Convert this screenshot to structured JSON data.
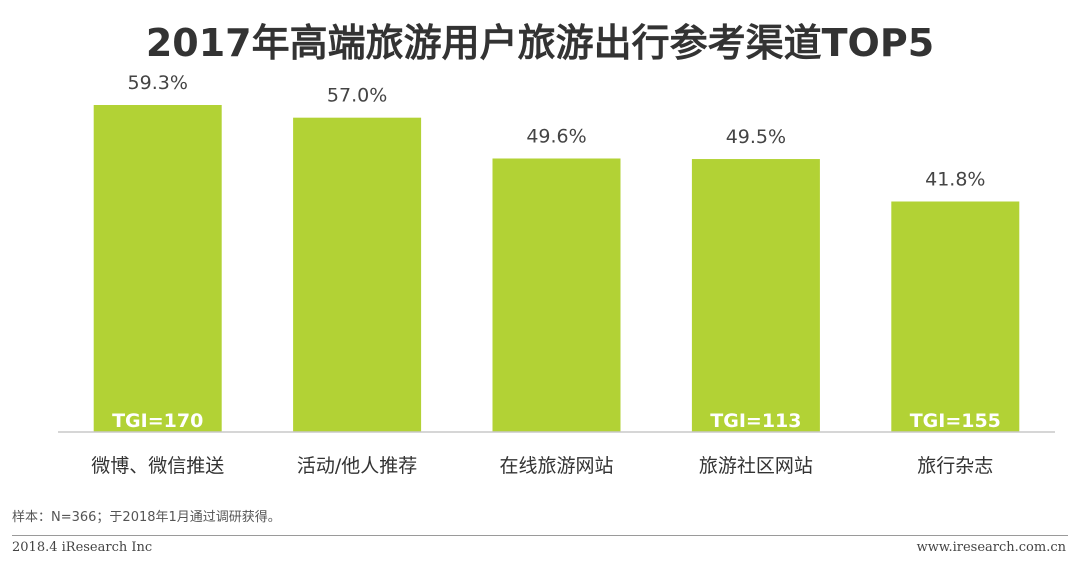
{
  "chart_data": {
    "type": "bar",
    "title": "2017年高端旅游用户旅游出行参考渠道TOP5",
    "categories": [
      "微博、微信推送",
      "活动/他人推荐",
      "在线旅游网站",
      "旅游社区网站",
      "旅行杂志"
    ],
    "values": [
      59.3,
      57.0,
      49.6,
      49.5,
      41.8
    ],
    "value_labels": [
      "59.3%",
      "57.0%",
      "49.6%",
      "49.5%",
      "41.8%"
    ],
    "annotations": [
      "TGI=170",
      "",
      "",
      "TGI=113",
      "TGI=155"
    ],
    "ylim": [
      0,
      60
    ],
    "bar_color": "#b2d235",
    "grid": false
  },
  "note": "样本：N=366；于2018年1月通过调研获得。",
  "footer": {
    "left": "2018.4 iResearch Inc",
    "right": "www.iresearch.com.cn"
  }
}
